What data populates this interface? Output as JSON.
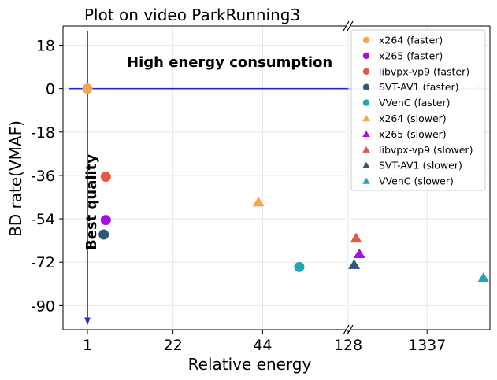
{
  "chart_data": {
    "type": "scatter",
    "title": "Plot on video ParkRunning3",
    "xlabel": "Relative energy",
    "ylabel": "BD rate(VMAF)",
    "ylim": [
      -100,
      26
    ],
    "yticks": [
      18,
      0,
      -18,
      -36,
      -54,
      -72,
      -90
    ],
    "ytick_labels": [
      "18",
      "0",
      "-18",
      "-36",
      "-54",
      "-72",
      "-90"
    ],
    "x_axis_break": true,
    "left_panel": {
      "xlim": [
        -5,
        65
      ],
      "xticks": [
        1,
        22,
        44
      ],
      "xtick_labels": [
        "1",
        "22",
        "44"
      ]
    },
    "right_panel": {
      "xlim": [
        128,
        2300
      ],
      "xticks": [
        128,
        1337
      ],
      "xtick_labels": [
        "128",
        "1337"
      ]
    },
    "grid": true,
    "legend_position": "upper-right",
    "annotations": {
      "high_energy": "High energy consumption",
      "best_quality": "Best quality"
    },
    "series": [
      {
        "name": "x264 (faster)",
        "marker": "circle",
        "color": "#f4a64e",
        "points": [
          {
            "x": 1,
            "y": 0
          }
        ]
      },
      {
        "name": "x265 (faster)",
        "marker": "circle",
        "color": "#a80ee6",
        "points": [
          {
            "x": 5.5,
            "y": -54.5
          }
        ]
      },
      {
        "name": "libvpx-vp9 (faster)",
        "marker": "circle",
        "color": "#e5574a",
        "points": [
          {
            "x": 5.5,
            "y": -36.5
          }
        ]
      },
      {
        "name": "SVT-AV1 (faster)",
        "marker": "circle",
        "color": "#2d5977",
        "points": [
          {
            "x": 5,
            "y": -60.5
          }
        ]
      },
      {
        "name": "VVenC (faster)",
        "marker": "circle",
        "color": "#1ea5b8",
        "points": [
          {
            "x": 53,
            "y": -74
          }
        ]
      },
      {
        "name": "x264 (slower)",
        "marker": "triangle",
        "color": "#f4a64e",
        "points": [
          {
            "x": 43,
            "y": -47
          }
        ]
      },
      {
        "name": "x265 (slower)",
        "marker": "triangle",
        "color": "#a80ee6",
        "points": [
          {
            "x": 300,
            "y": -68.5
          }
        ]
      },
      {
        "name": "libvpx-vp9 (slower)",
        "marker": "triangle",
        "color": "#e5574a",
        "points": [
          {
            "x": 250,
            "y": -62
          }
        ]
      },
      {
        "name": "SVT-AV1 (slower)",
        "marker": "triangle",
        "color": "#2d5977",
        "points": [
          {
            "x": 220,
            "y": -73
          }
        ]
      },
      {
        "name": "VVenC (slower)",
        "marker": "triangle",
        "color": "#1ea5b8",
        "points": [
          {
            "x": 2200,
            "y": -78.5
          }
        ]
      }
    ]
  }
}
